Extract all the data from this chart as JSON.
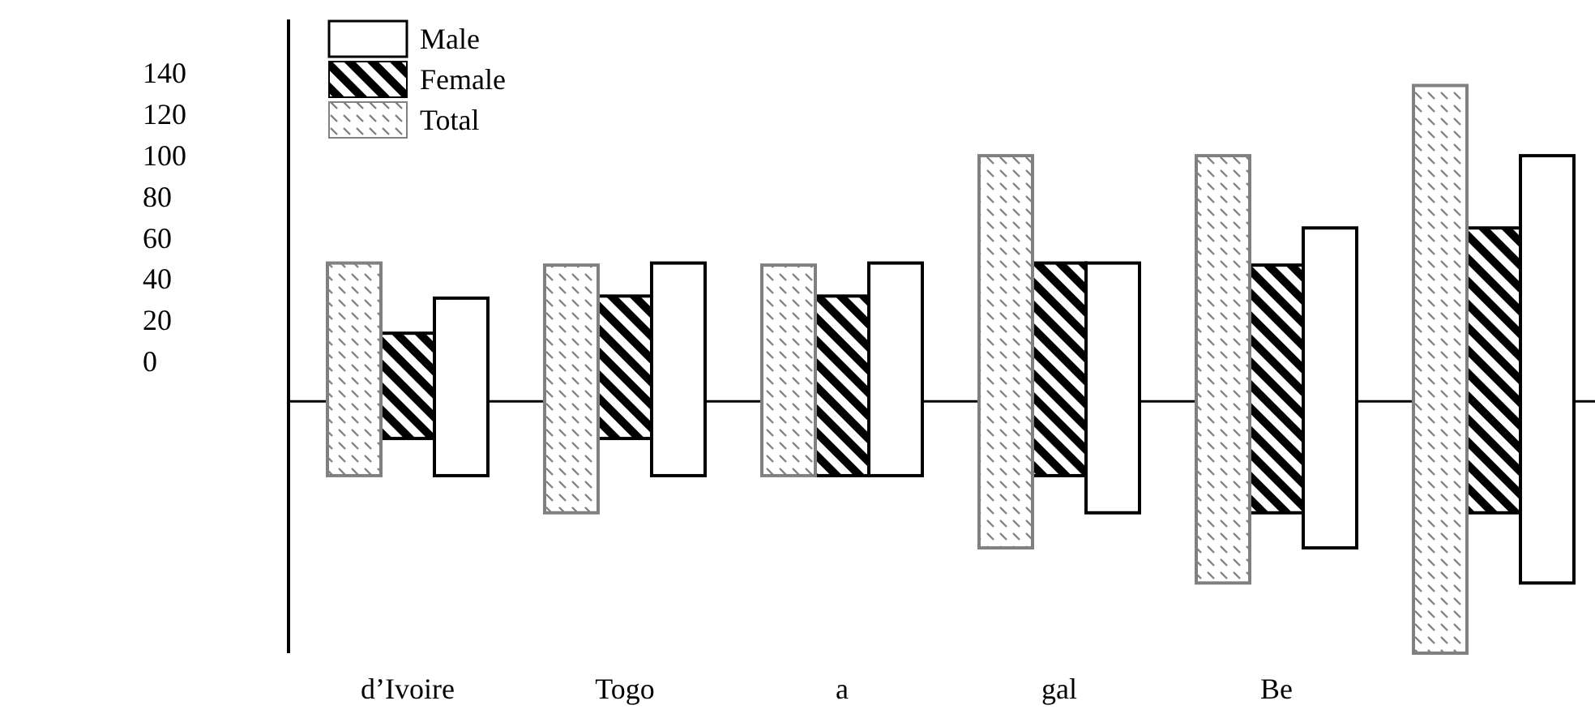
{
  "chart_data": {
    "type": "bar",
    "categories": [
      "d’Ivoire",
      "Togo",
      "a",
      "gal",
      "Be",
      null
    ],
    "ylim": [
      -141,
      166
    ],
    "yticks": [
      0,
      20,
      40,
      60,
      80,
      100,
      120,
      140
    ],
    "series": [
      {
        "name": "Male",
        "color": "#ffffff",
        "base": [
          -55,
          -55,
          -55,
          -73,
          -90,
          -107
        ],
        "values": [
          86,
          103,
          103,
          121,
          155,
          207
        ]
      },
      {
        "name": "Female",
        "color": "#000000",
        "base": [
          -37,
          -37,
          -55,
          -55,
          -73,
          -73
        ],
        "values": [
          51,
          69,
          87,
          103,
          120,
          138
        ]
      },
      {
        "name": "Total",
        "color": "#808080",
        "base": [
          -55,
          -73,
          -55,
          -90,
          -107,
          -141
        ],
        "values": [
          103,
          120,
          102,
          190,
          207,
          275
        ]
      }
    ],
    "ref_lines": [
      {
        "axis": "y",
        "value": -19
      }
    ],
    "legend": "top left",
    "grid": false
  }
}
